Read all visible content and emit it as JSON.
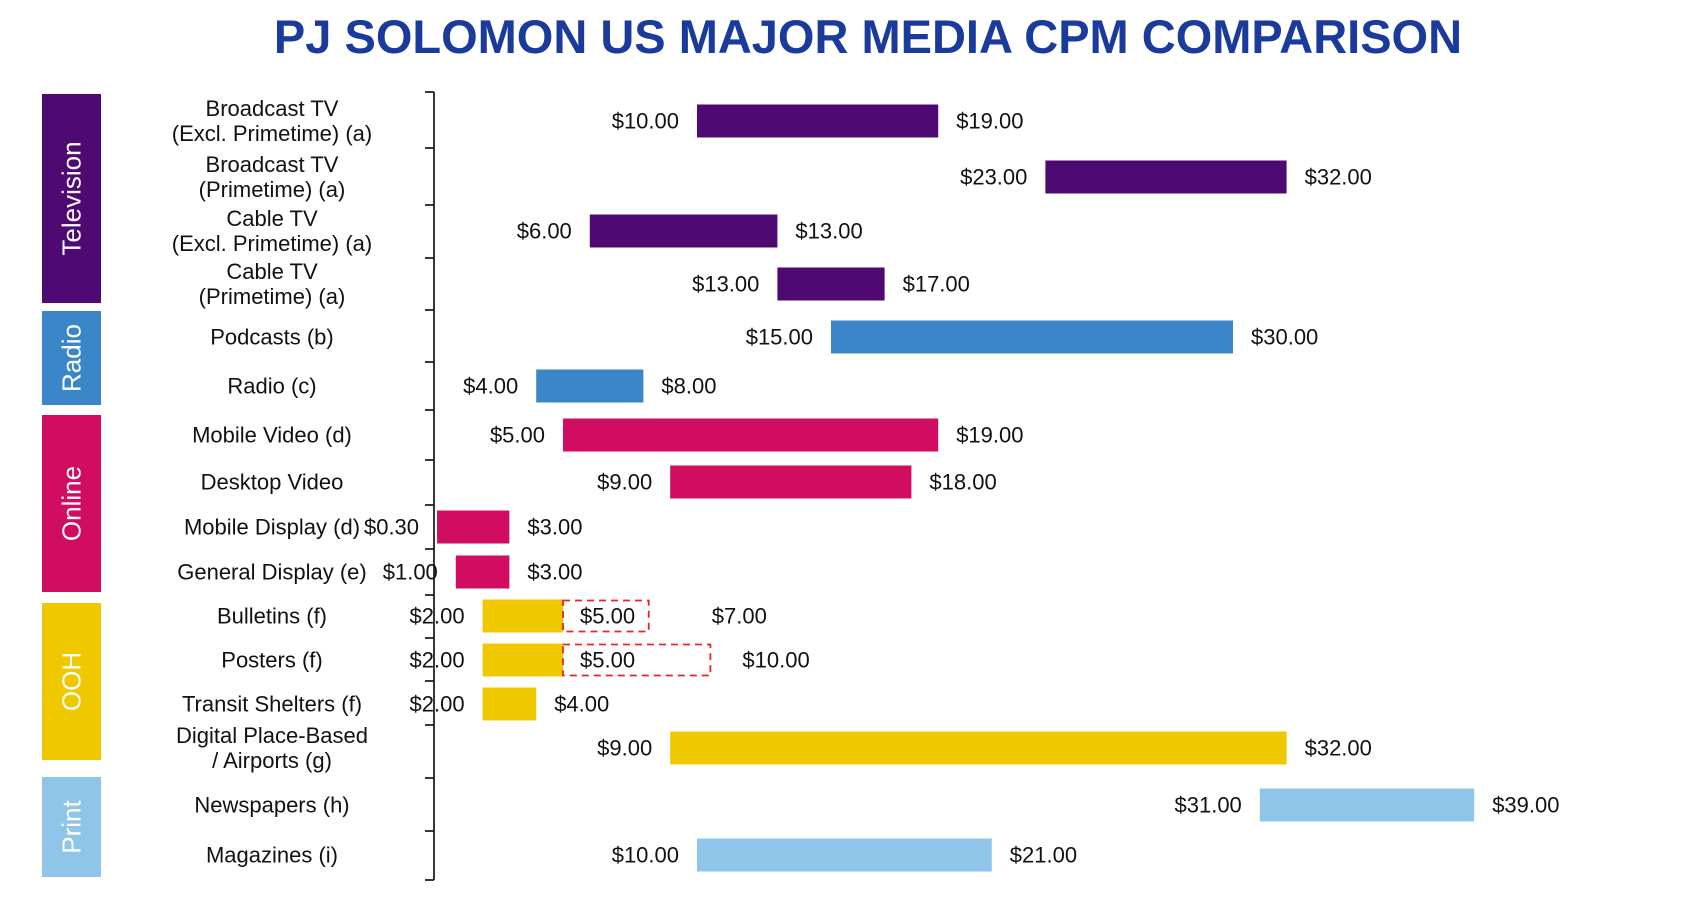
{
  "title": "PJ SOLOMON US MAJOR MEDIA CPM COMPARISON",
  "colors": {
    "title": "#1a3a9c",
    "Television": "#4e0a72",
    "Radio": "#3a86c8",
    "Online": "#d10d62",
    "OOH": "#f0c800",
    "Print": "#8ec5e8",
    "dashed_outline": "#e8262a",
    "axis": "#222222"
  },
  "chart_data": {
    "type": "bar",
    "orientation": "horizontal-range",
    "title": "PJ SOLOMON US MAJOR MEDIA CPM COMPARISON",
    "xlim": [
      0,
      40
    ],
    "unit": "$",
    "groups": [
      {
        "name": "Television",
        "color": "#4e0a72",
        "rows": [
          0,
          3
        ]
      },
      {
        "name": "Radio",
        "color": "#3a86c8",
        "rows": [
          4,
          5
        ]
      },
      {
        "name": "Online",
        "color": "#d10d62",
        "rows": [
          6,
          9
        ]
      },
      {
        "name": "OOH",
        "color": "#f0c800",
        "rows": [
          10,
          13
        ]
      },
      {
        "name": "Print",
        "color": "#8ec5e8",
        "rows": [
          14,
          15
        ]
      }
    ],
    "rows": [
      {
        "label": [
          "Broadcast TV",
          "(Excl. Primetime) (a)"
        ],
        "group": "Television",
        "low": 10,
        "high": 19,
        "low_label": "$10.00",
        "high_label": "$19.00"
      },
      {
        "label": [
          "Broadcast TV",
          "(Primetime) (a)"
        ],
        "group": "Television",
        "low": 23,
        "high": 32,
        "low_label": "$23.00",
        "high_label": "$32.00"
      },
      {
        "label": [
          "Cable TV",
          "(Excl. Primetime) (a)"
        ],
        "group": "Television",
        "low": 6,
        "high": 13,
        "low_label": "$6.00",
        "high_label": "$13.00"
      },
      {
        "label": [
          "Cable TV",
          "(Primetime) (a)"
        ],
        "group": "Television",
        "low": 13,
        "high": 17,
        "low_label": "$13.00",
        "high_label": "$17.00"
      },
      {
        "label": [
          "Podcasts (b)"
        ],
        "group": "Radio",
        "low": 15,
        "high": 30,
        "low_label": "$15.00",
        "high_label": "$30.00"
      },
      {
        "label": [
          "Radio (c)"
        ],
        "group": "Radio",
        "low": 4,
        "high": 8,
        "low_label": "$4.00",
        "high_label": "$8.00"
      },
      {
        "label": [
          "Mobile Video (d)"
        ],
        "group": "Online",
        "low": 5,
        "high": 19,
        "low_label": "$5.00",
        "high_label": "$19.00"
      },
      {
        "label": [
          "Desktop Video"
        ],
        "group": "Online",
        "low": 9,
        "high": 18,
        "low_label": "$9.00",
        "high_label": "$18.00"
      },
      {
        "label": [
          "Mobile Display (d)"
        ],
        "group": "Online",
        "low": 0.3,
        "high": 3,
        "low_label": "$0.30",
        "high_label": "$3.00"
      },
      {
        "label": [
          "General Display (e)"
        ],
        "group": "Online",
        "low": 1,
        "high": 3,
        "low_label": "$1.00",
        "high_label": "$3.00"
      },
      {
        "label": [
          "Bulletins (f)"
        ],
        "group": "OOH",
        "low": 2,
        "high": 5,
        "low_label": "$2.00",
        "high_label": "$7.00",
        "dashed_high": 7,
        "dashed_label": "$5.00"
      },
      {
        "label": [
          "Posters (f)"
        ],
        "group": "OOH",
        "low": 2,
        "high": 5,
        "low_label": "$2.00",
        "high_label": "$10.00",
        "dashed_high": 10,
        "dashed_label": "$5.00"
      },
      {
        "label": [
          "Transit Shelters (f)"
        ],
        "group": "OOH",
        "low": 2,
        "high": 4,
        "low_label": "$2.00",
        "high_label": "$4.00"
      },
      {
        "label": [
          "Digital Place-Based",
          "/ Airports (g)"
        ],
        "group": "OOH",
        "low": 9,
        "high": 32,
        "low_label": "$9.00",
        "high_label": "$32.00"
      },
      {
        "label": [
          "Newspapers (h)"
        ],
        "group": "Print",
        "low": 31,
        "high": 39,
        "low_label": "$31.00",
        "high_label": "$39.00"
      },
      {
        "label": [
          "Magazines (i)"
        ],
        "group": "Print",
        "low": 10,
        "high": 21,
        "low_label": "$10.00",
        "high_label": "$21.00"
      }
    ]
  }
}
